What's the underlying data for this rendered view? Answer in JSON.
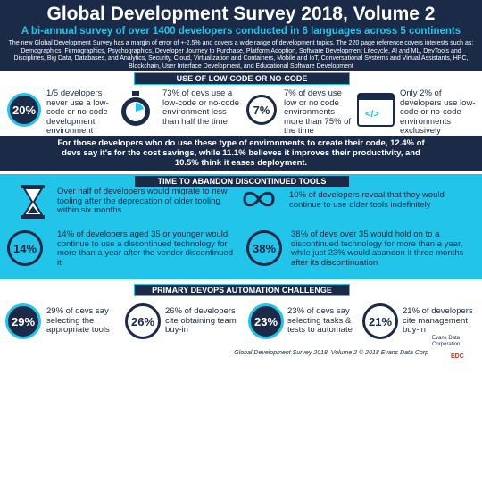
{
  "header": {
    "title": "Global Development Survey 2018, Volume 2",
    "subtitle": "A bi-annual survey of over 1400 developers conducted in 6 languages across 5 continents",
    "intro": "The new Global Development Survey has a margin of error of +-2.5% and covers a wide range of development topics. The 220 page reference covers interests such as: Demographics, Firmographics, Psychographics, Developer Journey to Purchase, Platform Adoption, Software Development Lifecycle, AI and ML, DevTools and Disciplines, Big Data, Databases, and Analytics, Security, Cloud, Virtualization and Containers, Mobile and IoT, Conversational Systems and Virtual Assistants, HPC, Blockchain, User Interface Development, and Educational Software Development"
  },
  "sections": [
    {
      "heading": "USE OF LOW-CODE OR NO-CODE",
      "items": [
        {
          "badge": "20%",
          "text": "1/5 developers never use a low-code or no-code development environment"
        },
        {
          "text": "73% of devs use a low-code or no-code environment less than half the time"
        },
        {
          "badge": "7%",
          "text": "7% of devs use low or no code environments more than 75% of the time"
        },
        {
          "text": "Only 2% of developers use low-code or no-code environments exclusively"
        }
      ]
    },
    {
      "heading": "TIME TO ABANDON DISCONTINUED TOOLS",
      "items": [
        {
          "text": "Over half of developers would migrate to new tooling after the deprecation of older tooling within six months"
        },
        {
          "text": "10% of developers reveal that they would continue to use older tools indefinitely"
        },
        {
          "badge": "14%",
          "text": "14% of developers aged 35 or younger would continue to use a discontinued technology for more than a year after the vendor discontinued it"
        },
        {
          "badge": "38%",
          "text": "38% of devs over 35 would hold on to a discontinued technology for more than a year, while just 23% would abandon it three months after its discontinuation"
        }
      ]
    },
    {
      "heading": "PRIMARY DEVOPS AUTOMATION CHALLENGE",
      "items": [
        {
          "badge": "29%",
          "text": "29% of devs say selecting the appropriate tools"
        },
        {
          "badge": "26%",
          "text": "26% of developers cite obtaining team buy-in"
        },
        {
          "badge": "23%",
          "text": "23% of devs say selecting tasks & tests to automate"
        },
        {
          "badge": "21%",
          "text": "21% of developers cite management buy-in"
        }
      ]
    }
  ],
  "callout": "For those developers who do use these type of environments to create their code, 12.4% of devs say it's for the cost savings, while 11.1% believes it improves their productivity, and 10.5% think it eases deployment.",
  "footer": "Global Development Survey 2018, Volume 2 © 2018 Evans Data Corp",
  "logo": {
    "name": "Evans Data Corporation",
    "mark": "EDC"
  }
}
